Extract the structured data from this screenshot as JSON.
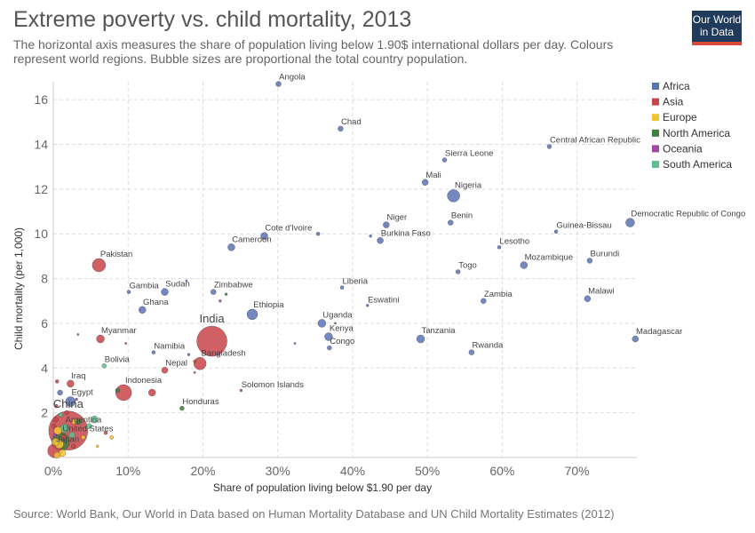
{
  "header": {
    "title": "Extreme poverty vs. child mortality, 2013",
    "subtitle": "The horizontal axis measures the share of population living below 1.90$ international dollars per day. Colours represent world regions. Bubble sizes are proportional the total country population.",
    "logo_line1": "Our World",
    "logo_line2": "in Data"
  },
  "footer": {
    "source": "Source: World Bank, Our World in Data based on Human Mortality Database and UN Child Mortality Estimates (2012)"
  },
  "colors": {
    "Africa": "#5a72b6",
    "Asia": "#c9444a",
    "Europe": "#f4c430",
    "North America": "#3f7f3f",
    "Oceania": "#a349a4",
    "South America": "#5fbf8f"
  },
  "chart_data": {
    "type": "scatter",
    "title": "Extreme poverty vs. child mortality, 2013",
    "xlabel": "Share of population living below $1.90 per day",
    "ylabel": "Child mortality (per 1,000)",
    "xlim": [
      0,
      78
    ],
    "ylim": [
      0,
      16.8
    ],
    "xticks": [
      0,
      10,
      20,
      30,
      40,
      50,
      60,
      70
    ],
    "xtick_labels": [
      "0%",
      "10%",
      "20%",
      "30%",
      "40%",
      "50%",
      "60%",
      "70%"
    ],
    "yticks": [
      2,
      4,
      6,
      8,
      10,
      12,
      14,
      16
    ],
    "grid": true,
    "legend": [
      "Africa",
      "Asia",
      "Europe",
      "North America",
      "Oceania",
      "South America"
    ],
    "legend_position": "top-right",
    "points": [
      {
        "label": "Angola",
        "x": 30.1,
        "y": 16.7,
        "region": "Africa",
        "size": 3
      },
      {
        "label": "Chad",
        "x": 38.4,
        "y": 14.7,
        "region": "Africa",
        "size": 3
      },
      {
        "label": "Central African Republic",
        "x": 66.3,
        "y": 13.9,
        "region": "Africa",
        "size": 2.5
      },
      {
        "label": "Sierra Leone",
        "x": 52.3,
        "y": 13.3,
        "region": "Africa",
        "size": 2.5
      },
      {
        "label": "Mali",
        "x": 49.7,
        "y": 12.3,
        "region": "Africa",
        "size": 3.5
      },
      {
        "label": "Nigeria",
        "x": 53.5,
        "y": 11.7,
        "region": "Africa",
        "size": 7
      },
      {
        "label": "Benin",
        "x": 53.1,
        "y": 10.5,
        "region": "Africa",
        "size": 3
      },
      {
        "label": "Democratic Republic of Congo",
        "x": 77.1,
        "y": 10.5,
        "region": "Africa",
        "size": 5
      },
      {
        "label": "Guinea-Bissau",
        "x": 67.2,
        "y": 10.1,
        "region": "Africa",
        "size": 2
      },
      {
        "label": "Niger",
        "x": 44.5,
        "y": 10.4,
        "region": "Africa",
        "size": 3.5
      },
      {
        "label": "Burkina Faso",
        "x": 43.7,
        "y": 9.7,
        "region": "Africa",
        "size": 3.5
      },
      {
        "label": "Lesotho",
        "x": 59.6,
        "y": 9.4,
        "region": "Africa",
        "size": 2
      },
      {
        "label": "Burundi",
        "x": 71.7,
        "y": 8.8,
        "region": "Africa",
        "size": 3
      },
      {
        "label": "Mozambique",
        "x": 62.9,
        "y": 8.6,
        "region": "Africa",
        "size": 4
      },
      {
        "label": "Togo",
        "x": 54.1,
        "y": 8.3,
        "region": "Africa",
        "size": 2.5
      },
      {
        "label": "Cote d'Ivoire",
        "x": 28.2,
        "y": 9.9,
        "region": "Africa",
        "size": 4
      },
      {
        "label": "Cameroon",
        "x": 23.8,
        "y": 9.4,
        "region": "Africa",
        "size": 4
      },
      {
        "label": "Pakistan",
        "x": 6.1,
        "y": 8.6,
        "region": "Asia",
        "size": 7.5
      },
      {
        "label": "Liberia",
        "x": 38.6,
        "y": 7.6,
        "region": "Africa",
        "size": 2
      },
      {
        "label": "Zimbabwe",
        "x": 21.4,
        "y": 7.4,
        "region": "Africa",
        "size": 3
      },
      {
        "label": "Gambia",
        "x": 10.1,
        "y": 7.4,
        "region": "Africa",
        "size": 2
      },
      {
        "label": "Sudan",
        "x": 14.9,
        "y": 7.4,
        "region": "Africa",
        "size": 4
      },
      {
        "label": "Zambia",
        "x": 57.5,
        "y": 7.0,
        "region": "Africa",
        "size": 3
      },
      {
        "label": "Malawi",
        "x": 71.4,
        "y": 7.1,
        "region": "Africa",
        "size": 3.5
      },
      {
        "label": "Eswatini",
        "x": 42.0,
        "y": 6.8,
        "region": "Africa",
        "size": 1.5
      },
      {
        "label": "Ghana",
        "x": 11.9,
        "y": 6.6,
        "region": "Africa",
        "size": 4
      },
      {
        "label": "Ethiopia",
        "x": 26.6,
        "y": 6.4,
        "region": "Africa",
        "size": 6
      },
      {
        "label": "Uganda",
        "x": 35.9,
        "y": 6.0,
        "region": "Africa",
        "size": 4.5
      },
      {
        "label": "India",
        "x": 21.2,
        "y": 5.2,
        "region": "Asia",
        "size": 17
      },
      {
        "label": "Myanmar",
        "x": 6.3,
        "y": 5.3,
        "region": "Asia",
        "size": 4.5
      },
      {
        "label": "Kenya",
        "x": 36.8,
        "y": 5.4,
        "region": "Africa",
        "size": 4.5
      },
      {
        "label": "Congo",
        "x": 36.9,
        "y": 4.9,
        "region": "Africa",
        "size": 2.5
      },
      {
        "label": "Tanzania",
        "x": 49.1,
        "y": 5.3,
        "region": "Africa",
        "size": 4.5
      },
      {
        "label": "Madagascar",
        "x": 77.8,
        "y": 5.3,
        "region": "Africa",
        "size": 3.5
      },
      {
        "label": "Rwanda",
        "x": 55.9,
        "y": 4.7,
        "region": "Africa",
        "size": 3
      },
      {
        "label": "Namibia",
        "x": 13.4,
        "y": 4.7,
        "region": "Africa",
        "size": 2
      },
      {
        "label": "Bangladesh",
        "x": 19.6,
        "y": 4.2,
        "region": "Asia",
        "size": 7
      },
      {
        "label": "Bolivia",
        "x": 6.8,
        "y": 4.1,
        "region": "South America",
        "size": 2.5
      },
      {
        "label": "Nepal",
        "x": 14.9,
        "y": 3.9,
        "region": "Asia",
        "size": 3.5
      },
      {
        "label": "Solomon Islands",
        "x": 25.1,
        "y": 3.0,
        "region": "Oceania",
        "size": 1.5
      },
      {
        "label": "Iraq",
        "x": 2.3,
        "y": 3.3,
        "region": "Asia",
        "size": 4
      },
      {
        "label": "Indonesia",
        "x": 9.4,
        "y": 2.9,
        "region": "Asia",
        "size": 9
      },
      {
        "label": "Egypt",
        "x": 2.3,
        "y": 2.5,
        "region": "Africa",
        "size": 5.5
      },
      {
        "label": "Honduras",
        "x": 17.2,
        "y": 2.2,
        "region": "North America",
        "size": 2.5
      },
      {
        "label": "China",
        "x": 2.0,
        "y": 1.2,
        "region": "Asia",
        "size": 22
      },
      {
        "label": "Argentina",
        "x": 1.5,
        "y": 1.3,
        "region": "South America",
        "size": 5
      },
      {
        "label": "United States",
        "x": 1.0,
        "y": 0.7,
        "region": "North America",
        "size": 10
      },
      {
        "label": "Japan",
        "x": 0.2,
        "y": 0.3,
        "region": "Asia",
        "size": 8
      }
    ],
    "extra_points": [
      {
        "x": 13.2,
        "y": 2.9,
        "region": "Asia",
        "size": 4
      },
      {
        "x": 35.4,
        "y": 10.0,
        "region": "Africa",
        "size": 2
      },
      {
        "x": 42.4,
        "y": 9.9,
        "region": "Africa",
        "size": 1.5
      },
      {
        "x": 23.1,
        "y": 7.3,
        "region": "North America",
        "size": 1.5
      },
      {
        "x": 22.3,
        "y": 7.0,
        "region": "Oceania",
        "size": 1.5
      },
      {
        "x": 22.0,
        "y": 4.6,
        "region": "Oceania",
        "size": 1.5
      },
      {
        "x": 18.1,
        "y": 4.6,
        "region": "Africa",
        "size": 1.5
      },
      {
        "x": 18.9,
        "y": 4.3,
        "region": "Asia",
        "size": 1.5
      },
      {
        "x": 32.3,
        "y": 5.1,
        "region": "Africa",
        "size": 1.2
      },
      {
        "x": 37.7,
        "y": 6.0,
        "region": "Oceania",
        "size": 1.2
      },
      {
        "x": 18.9,
        "y": 3.8,
        "region": "Asia",
        "size": 1.2
      },
      {
        "x": 17.8,
        "y": 7.9,
        "region": "Africa",
        "size": 1.2
      },
      {
        "x": 3.3,
        "y": 5.5,
        "region": "Africa",
        "size": 1.2
      },
      {
        "x": 9.7,
        "y": 5.1,
        "region": "Asia",
        "size": 1.2
      },
      {
        "x": 8.6,
        "y": 3.0,
        "region": "North America",
        "size": 2.5
      },
      {
        "x": 0.5,
        "y": 3.4,
        "region": "Asia",
        "size": 2
      },
      {
        "x": 0.9,
        "y": 2.9,
        "region": "Africa",
        "size": 3
      },
      {
        "x": 0.4,
        "y": 2.3,
        "region": "Asia",
        "size": 2
      },
      {
        "x": 3.1,
        "y": 2.6,
        "region": "Oceania",
        "size": 1.5
      },
      {
        "x": 0.3,
        "y": 1.7,
        "region": "Asia",
        "size": 3
      },
      {
        "x": 1.0,
        "y": 1.9,
        "region": "South America",
        "size": 2.5
      },
      {
        "x": 2.8,
        "y": 1.6,
        "region": "Europe",
        "size": 3
      },
      {
        "x": 3.4,
        "y": 1.6,
        "region": "North America",
        "size": 3
      },
      {
        "x": 5.5,
        "y": 1.7,
        "region": "South America",
        "size": 4
      },
      {
        "x": 4.8,
        "y": 1.4,
        "region": "South America",
        "size": 3
      },
      {
        "x": 7.0,
        "y": 1.1,
        "region": "Asia",
        "size": 2
      },
      {
        "x": 7.8,
        "y": 0.9,
        "region": "Europe",
        "size": 2
      },
      {
        "x": 4.0,
        "y": 0.9,
        "region": "Europe",
        "size": 2.5
      },
      {
        "x": 0.6,
        "y": 1.2,
        "region": "Europe",
        "size": 4.5
      },
      {
        "x": 0.8,
        "y": 0.6,
        "region": "Europe",
        "size": 5
      },
      {
        "x": 0.3,
        "y": 0.7,
        "region": "Europe",
        "size": 4
      },
      {
        "x": 1.2,
        "y": 0.2,
        "region": "Europe",
        "size": 4
      },
      {
        "x": 0.5,
        "y": 0.1,
        "region": "Europe",
        "size": 3.5
      },
      {
        "x": 2.7,
        "y": 0.5,
        "region": "Asia",
        "size": 2.5
      },
      {
        "x": 5.9,
        "y": 0.5,
        "region": "Europe",
        "size": 1.5
      },
      {
        "x": 1.4,
        "y": 0.9,
        "region": "Asia",
        "size": 3
      },
      {
        "x": 0.2,
        "y": 1.0,
        "region": "Oceania",
        "size": 2
      },
      {
        "x": 1.8,
        "y": 2.0,
        "region": "Asia",
        "size": 2.5
      },
      {
        "x": 0.1,
        "y": 1.4,
        "region": "Asia",
        "size": 2.5
      },
      {
        "x": 2.5,
        "y": 1.0,
        "region": "South America",
        "size": 3.5
      }
    ]
  }
}
